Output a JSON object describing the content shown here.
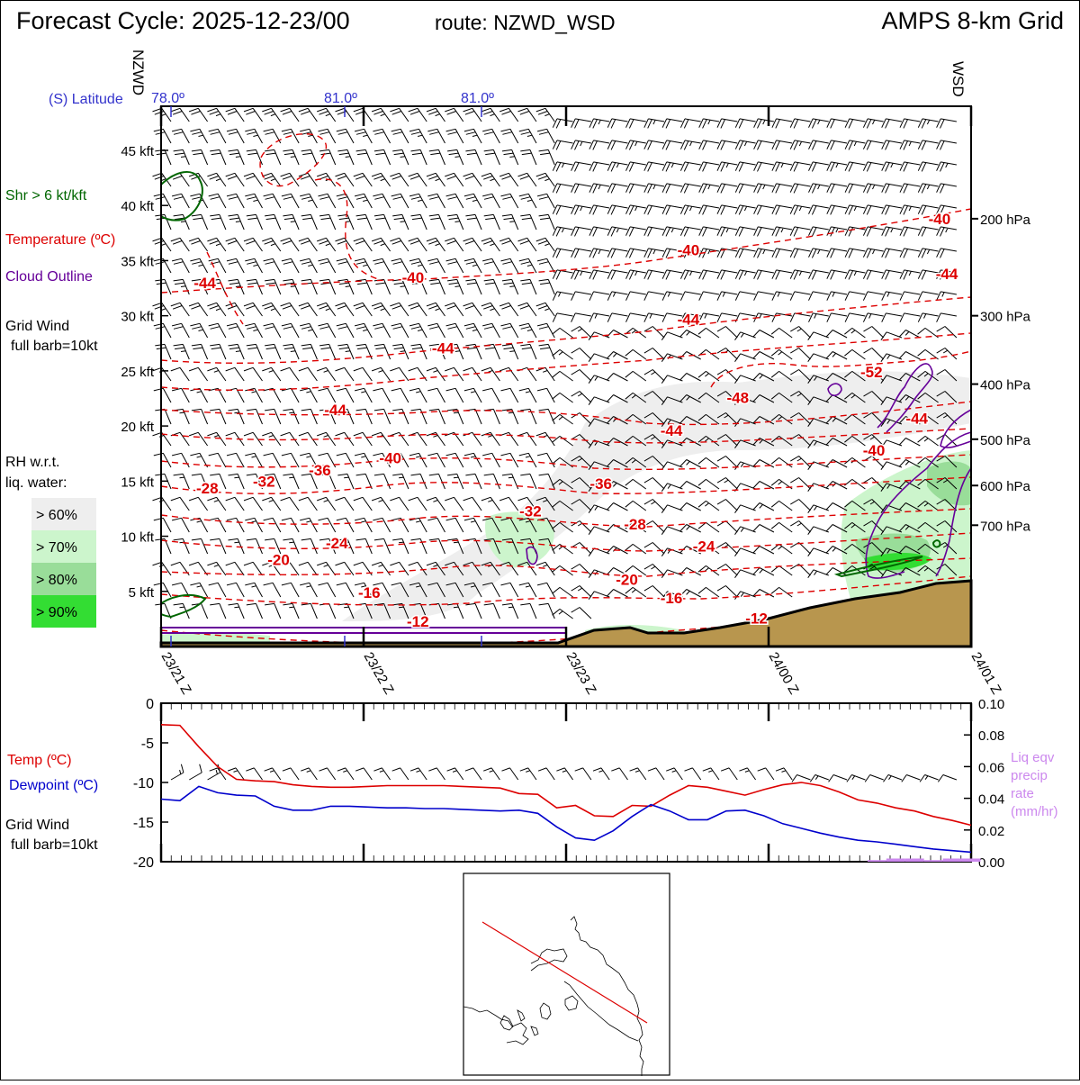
{
  "header": {
    "cycle": "Forecast Cycle: 2025-12-23/00",
    "route": "route: NZWD_WSD",
    "grid": "AMPS 8-km Grid"
  },
  "route_ends": {
    "start": "NZWD",
    "end": "WSD"
  },
  "latitude": {
    "label": "(S) Latitude",
    "ticks": [
      "78.0º",
      "81.0º",
      "81.0º"
    ]
  },
  "legend": {
    "shear": "Shr > 6 kt/kft",
    "temperature": "Temperature (ºC)",
    "cloud": "Cloud Outline",
    "wind_title": "Grid Wind",
    "wind_sub": "full barb=10kt",
    "rh_title": "RH w.r.t.",
    "rh_sub": "liq. water:",
    "rh_levels": [
      {
        "label": "> 60%",
        "color": "#eeeeee"
      },
      {
        "label": "> 70%",
        "color": "#ccf5cc"
      },
      {
        "label": "> 80%",
        "color": "#99dd99"
      },
      {
        "label": "> 90%",
        "color": "#33dd33"
      }
    ]
  },
  "colors": {
    "temperature": "#dd0000",
    "dewpoint": "#0000cc",
    "shear": "#006600",
    "cloud": "#660099",
    "precip": "#cc88ee",
    "terrain": "#b8964e",
    "latitude": "#3333cc"
  },
  "chart_data": [
    {
      "type": "line",
      "panel": "cross-section",
      "x_labels": [
        "23/21 Z",
        "23/22 Z",
        "23/23 Z",
        "24/00 Z",
        "24/01 Z"
      ],
      "y_labels": [
        "5 kft",
        "10 kft",
        "15 kft",
        "20 kft",
        "25 kft",
        "30 kft",
        "35 kft",
        "40 kft",
        "45 kft"
      ],
      "y_values": [
        5,
        10,
        15,
        20,
        25,
        30,
        35,
        40,
        45
      ],
      "ylim": [
        0,
        49
      ],
      "pressure_levels": [
        {
          "label": "200 hPa",
          "kft": 38.8
        },
        {
          "label": "300 hPa",
          "kft": 30.0
        },
        {
          "label": "400 hPa",
          "kft": 23.8
        },
        {
          "label": "500 hPa",
          "kft": 18.8
        },
        {
          "label": "600 hPa",
          "kft": 14.6
        },
        {
          "label": "700 hPa",
          "kft": 11.0
        }
      ],
      "temperature_labels": [
        {
          "label": "-40",
          "x": 0.961,
          "kft": 38.3
        },
        {
          "label": "-40",
          "x": 0.651,
          "kft": 35.5
        },
        {
          "label": "-40",
          "x": 0.311,
          "kft": 33.0
        },
        {
          "label": "-44",
          "x": 0.054,
          "kft": 32.5
        },
        {
          "label": "-44",
          "x": 0.97,
          "kft": 33.3
        },
        {
          "label": "-44",
          "x": 0.651,
          "kft": 29.2
        },
        {
          "label": "-44",
          "x": 0.348,
          "kft": 26.6
        },
        {
          "label": "-44",
          "x": 0.215,
          "kft": 21.0
        },
        {
          "label": "-48",
          "x": 0.712,
          "kft": 22.1
        },
        {
          "label": "-52",
          "x": 0.877,
          "kft": 24.4
        },
        {
          "label": "-44",
          "x": 0.933,
          "kft": 20.2
        },
        {
          "label": "-44",
          "x": 0.63,
          "kft": 19.1
        },
        {
          "label": "-40",
          "x": 0.88,
          "kft": 17.3
        },
        {
          "label": "-40",
          "x": 0.283,
          "kft": 16.6
        },
        {
          "label": "-36",
          "x": 0.196,
          "kft": 15.5
        },
        {
          "label": "-36",
          "x": 0.543,
          "kft": 14.3
        },
        {
          "label": "-32",
          "x": 0.127,
          "kft": 14.5
        },
        {
          "label": "-28",
          "x": 0.057,
          "kft": 13.9
        },
        {
          "label": "-32",
          "x": 0.456,
          "kft": 11.8
        },
        {
          "label": "-28",
          "x": 0.585,
          "kft": 10.6
        },
        {
          "label": "-24",
          "x": 0.217,
          "kft": 8.9
        },
        {
          "label": "-24",
          "x": 0.67,
          "kft": 8.6
        },
        {
          "label": "-20",
          "x": 0.145,
          "kft": 7.4
        },
        {
          "label": "-20",
          "x": 0.575,
          "kft": 5.6
        },
        {
          "label": "-16",
          "x": 0.257,
          "kft": 4.4
        },
        {
          "label": "-16",
          "x": 0.63,
          "kft": 3.9
        },
        {
          "label": "-12",
          "x": 0.317,
          "kft": 1.8
        },
        {
          "label": "-12",
          "x": 0.735,
          "kft": 2.1
        }
      ]
    },
    {
      "type": "line",
      "panel": "surface",
      "x_labels": [
        "23/21 Z",
        "23/22 Z",
        "23/23 Z",
        "24/00 Z",
        "24/01 Z"
      ],
      "y_left_labels": [
        "0",
        "-5",
        "-10",
        "-15",
        "-20"
      ],
      "y_right_labels": [
        "0.10",
        "0.08",
        "0.06",
        "0.04",
        "0.02",
        "0.00"
      ],
      "ylim": [
        -20,
        0
      ],
      "y2lim": [
        0,
        0.1
      ],
      "series": [
        {
          "name": "Temp (ºC)",
          "values": [
            -2.7,
            -2.8,
            -5.5,
            -8,
            -9.6,
            -9.8,
            -9.9,
            -10.3,
            -10.5,
            -10.6,
            -10.6,
            -10.5,
            -10.4,
            -10.4,
            -10.4,
            -10.4,
            -10.5,
            -10.6,
            -10.7,
            -11.4,
            -11.5,
            -13.2,
            -12.9,
            -14.2,
            -14.3,
            -12.9,
            -13.0,
            -11.6,
            -10.4,
            -10.6,
            -11.1,
            -11.6,
            -10.9,
            -10.3,
            -10.0,
            -10.4,
            -11.2,
            -12.2,
            -12.6,
            -13.2,
            -13.6,
            -14.3,
            -14.8,
            -15.4
          ]
        },
        {
          "name": "Dewpoint (ºC)",
          "values": [
            -12.1,
            -12.3,
            -10.5,
            -11.3,
            -11.6,
            -11.7,
            -13.0,
            -13.5,
            -13.5,
            -13.0,
            -13.0,
            -13.1,
            -13.2,
            -13.2,
            -13.3,
            -13.3,
            -13.4,
            -13.5,
            -13.6,
            -13.5,
            -13.9,
            -15.6,
            -17.0,
            -17.3,
            -16.1,
            -14.3,
            -12.8,
            -13.6,
            -14.7,
            -14.7,
            -13.6,
            -13.5,
            -14.2,
            -15.2,
            -15.8,
            -16.4,
            -16.9,
            -17.3,
            -17.5,
            -17.8,
            -18.1,
            -18.4,
            -18.6,
            -18.8
          ]
        },
        {
          "name": "Liq eqv precip rate (mm/hr)",
          "values": [
            0,
            0,
            0,
            0,
            0,
            0,
            0,
            0,
            0,
            0,
            0,
            0,
            0,
            0,
            0,
            0,
            0,
            0,
            0,
            0,
            0,
            0,
            0,
            0,
            0,
            0,
            0,
            0,
            0,
            0,
            0,
            0,
            0,
            0,
            0,
            0,
            0,
            0,
            0.001,
            0.002,
            0.002,
            0.001,
            0.002,
            0.002
          ]
        }
      ],
      "labels": {
        "temp": "Temp (ºC)",
        "dewpoint": "Dewpoint (ºC)",
        "wind_title": "Grid Wind",
        "wind_sub": "full barb=10kt",
        "precip_lines": [
          "Liq eqv",
          "precip",
          "rate",
          "(mm/hr)"
        ]
      }
    }
  ]
}
